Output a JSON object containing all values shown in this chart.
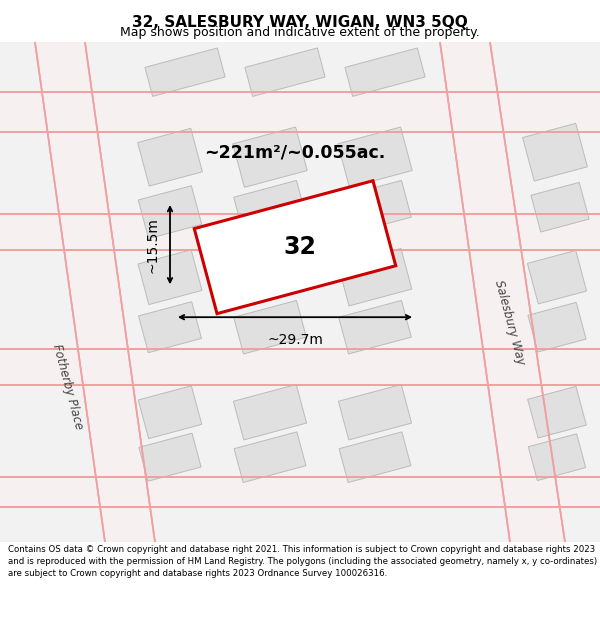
{
  "title": "32, SALESBURY WAY, WIGAN, WN3 5QQ",
  "subtitle": "Map shows position and indicative extent of the property.",
  "footnote": "Contains OS data © Crown copyright and database right 2021. This information is subject to Crown copyright and database rights 2023 and is reproduced with the permission of HM Land Registry. The polygons (including the associated geometry, namely x, y co-ordinates) are subject to Crown copyright and database rights 2023 Ordnance Survey 100026316.",
  "area_label": "~221m²/~0.055ac.",
  "width_label": "~29.7m",
  "height_label": "~15.5m",
  "plot_number": "32",
  "street_label_right": "Salesbury Way",
  "street_label_left": "Fotherby Place",
  "highlight_color": "#cc0000",
  "map_bg": "#f2f2f2",
  "building_fill": "#e0e0e0",
  "building_edge": "#bbbbbb",
  "road_line_color": "#f0a0a0",
  "road_fill": "#f7f0f0"
}
